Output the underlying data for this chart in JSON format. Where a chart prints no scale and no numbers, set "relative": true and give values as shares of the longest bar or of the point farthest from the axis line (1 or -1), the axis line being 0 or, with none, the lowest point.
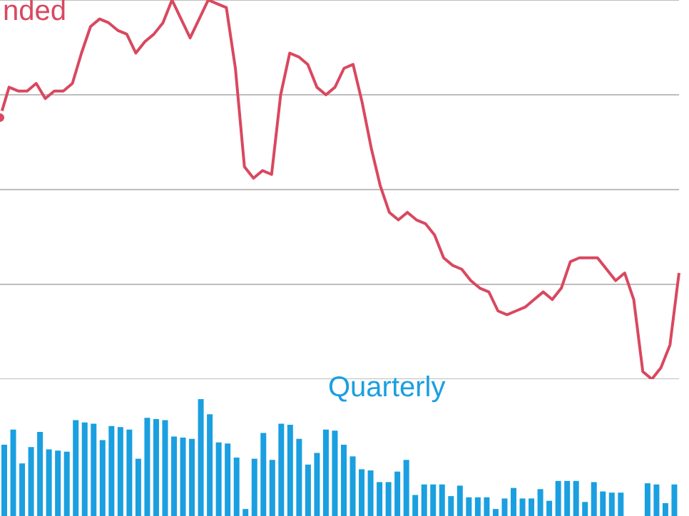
{
  "chart_data": [
    {
      "type": "line",
      "relative": true,
      "grid": "y",
      "categories": [
        null,
        null,
        null,
        null,
        null,
        null,
        null,
        null,
        null,
        null,
        null,
        null,
        null,
        null,
        null,
        null,
        null,
        null,
        null,
        null,
        null,
        null,
        null,
        null,
        null,
        null,
        null,
        null,
        null,
        null,
        null,
        null,
        null,
        null,
        null,
        null,
        null,
        null,
        null,
        null,
        null,
        null,
        null,
        null,
        null,
        null,
        null,
        null,
        null,
        null,
        null,
        null,
        null,
        null,
        null,
        null,
        null,
        null,
        null,
        null,
        null,
        null,
        null,
        null,
        null,
        null,
        null,
        null,
        null,
        null,
        null,
        null,
        null,
        null,
        null,
        null
      ],
      "series": [
        {
          "name": "nded",
          "color": "#d9485f",
          "values": [
            0.69,
            0.77,
            0.76,
            0.76,
            0.78,
            0.74,
            0.76,
            0.76,
            0.78,
            0.86,
            0.93,
            0.95,
            0.94,
            0.92,
            0.91,
            0.86,
            0.89,
            0.91,
            0.94,
            1,
            0.95,
            0.9,
            0.95,
            1,
            0.99,
            0.98,
            0.82,
            0.56,
            0.53,
            0.55,
            0.54,
            0.75,
            0.86,
            0.85,
            0.83,
            0.77,
            0.75,
            0.77,
            0.82,
            0.83,
            0.73,
            0.61,
            0.51,
            0.44,
            0.42,
            0.44,
            0.42,
            0.41,
            0.38,
            0.32,
            0.3,
            0.29,
            0.26,
            0.24,
            0.23,
            0.18,
            0.17,
            0.18,
            0.19,
            0.21,
            0.23,
            0.21,
            0.24,
            0.31,
            0.32,
            0.32,
            0.32,
            0.29,
            0.26,
            0.28,
            0.21,
            0.02,
            0,
            0.03,
            0.09,
            0.28
          ]
        }
      ]
    },
    {
      "type": "bar",
      "relative": true,
      "categories": [
        null,
        null,
        null,
        null,
        null,
        null,
        null,
        null,
        null,
        null,
        null,
        null,
        null,
        null,
        null,
        null,
        null,
        null,
        null,
        null,
        null,
        null,
        null,
        null,
        null,
        null,
        null,
        null,
        null,
        null,
        null,
        null,
        null,
        null,
        null,
        null,
        null,
        null,
        null,
        null,
        null,
        null,
        null,
        null,
        null,
        null,
        null,
        null,
        null,
        null,
        null,
        null,
        null,
        null,
        null,
        null,
        null,
        null,
        null,
        null,
        null,
        null,
        null,
        null,
        null,
        null,
        null,
        null,
        null,
        null,
        null,
        null,
        null,
        null,
        null,
        null
      ],
      "series": [
        {
          "name": "Quarterly",
          "color": "#1a9fe0",
          "values": [
            0.61,
            0.74,
            0.45,
            0.59,
            0.72,
            0.57,
            0.56,
            0.55,
            0.82,
            0.8,
            0.79,
            0.65,
            0.77,
            0.76,
            0.74,
            0.49,
            0.84,
            0.83,
            0.82,
            0.68,
            0.67,
            0.66,
            1,
            0.87,
            0.63,
            0.62,
            0.5,
            0.06,
            0.49,
            0.71,
            0.48,
            0.79,
            0.78,
            0.66,
            0.44,
            0.54,
            0.74,
            0.73,
            0.61,
            0.51,
            0.4,
            0.39,
            0.29,
            0.29,
            0.38,
            0.48,
            0.18,
            0.27,
            0.27,
            0.27,
            0.17,
            0.26,
            0.16,
            0.16,
            0.16,
            0.06,
            0.15,
            0.24,
            0.15,
            0.15,
            0.23,
            0.13,
            0.3,
            0.3,
            0.3,
            0.12,
            0.29,
            0.21,
            0.2,
            0.2,
            null,
            null,
            0.28,
            0.27,
            0.11,
            0.27
          ]
        }
      ]
    }
  ]
}
